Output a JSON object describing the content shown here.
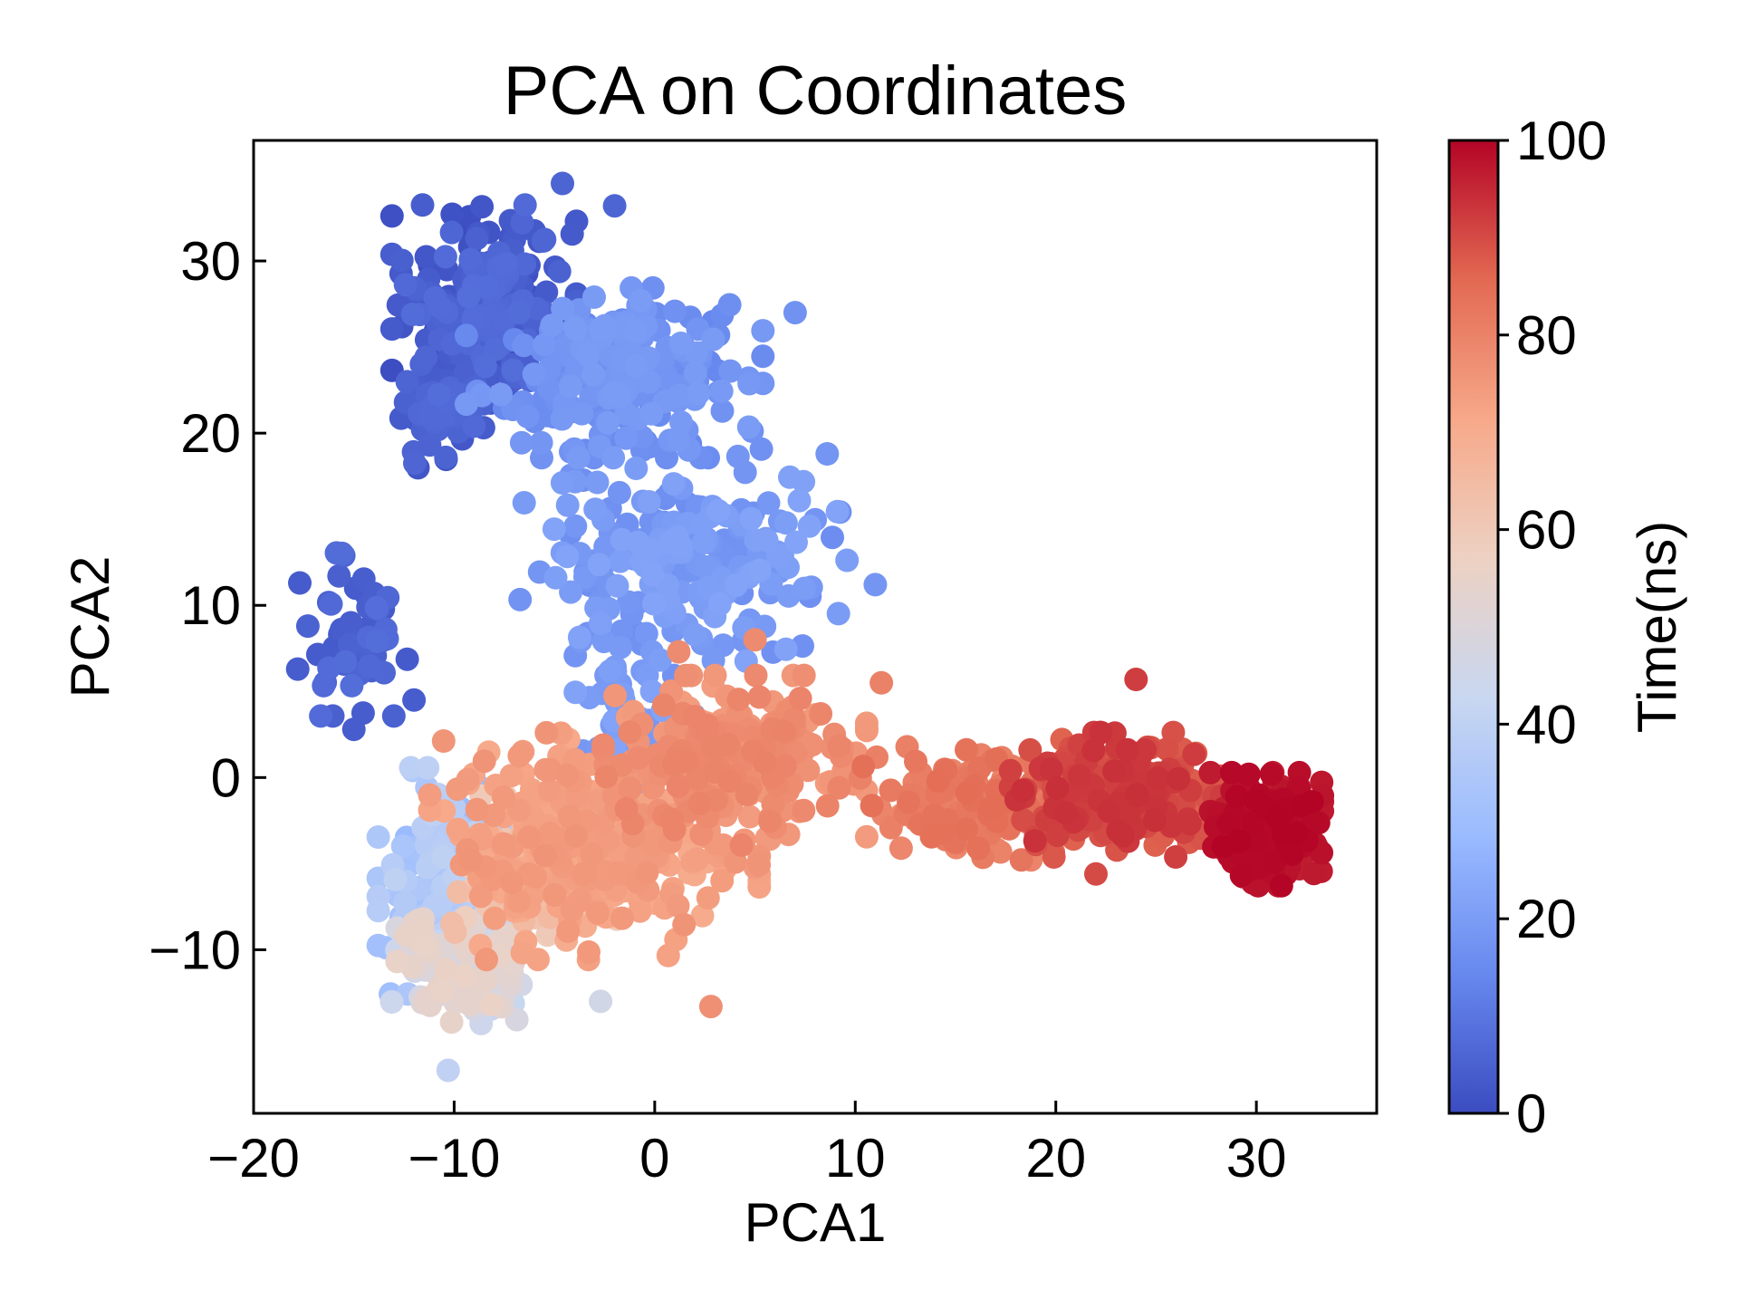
{
  "chart_data": {
    "type": "scatter",
    "title": "PCA on Coordinates",
    "xlabel": "PCA1",
    "ylabel": "PCA2",
    "xlim": [
      -20,
      36
    ],
    "ylim": [
      -19.5,
      37
    ],
    "xticks": [
      -20,
      -10,
      0,
      10,
      20,
      30
    ],
    "xtick_labels": [
      "−20",
      "−10",
      "0",
      "10",
      "20",
      "30"
    ],
    "yticks": [
      -10,
      0,
      10,
      20,
      30
    ],
    "ytick_labels": [
      "−10",
      "0",
      "10",
      "20",
      "30"
    ],
    "grid": false,
    "colormap": "coolwarm",
    "colormap_stops": [
      "#3b4cc0",
      "#6788ee",
      "#9abbff",
      "#c9d7f0",
      "#edd1c2",
      "#f7a889",
      "#e26952",
      "#b40426"
    ],
    "colorbar": {
      "label": "Time(ns)",
      "range": [
        0,
        100
      ],
      "ticks": [
        0,
        20,
        40,
        60,
        80,
        100
      ],
      "tick_labels": [
        "0",
        "20",
        "40",
        "60",
        "80",
        "100"
      ]
    },
    "clusters": [
      {
        "cx": -8.5,
        "cy": 27.5,
        "sx": 2.8,
        "sy": 3.5,
        "n": 240,
        "t0": 0,
        "t1": 8
      },
      {
        "cx": -11,
        "cy": 21,
        "sx": 1.5,
        "sy": 2.5,
        "n": 60,
        "t0": 2,
        "t1": 8
      },
      {
        "cx": -15.3,
        "cy": 8.5,
        "sx": 1.8,
        "sy": 3.0,
        "n": 55,
        "t0": 3,
        "t1": 8
      },
      {
        "cx": -2,
        "cy": 23.5,
        "sx": 4.5,
        "sy": 3.0,
        "n": 260,
        "t0": 14,
        "t1": 20
      },
      {
        "cx": 1.5,
        "cy": 12.5,
        "sx": 5.0,
        "sy": 4.0,
        "n": 230,
        "t0": 16,
        "t1": 22
      },
      {
        "cx": -1,
        "cy": 3.0,
        "sx": 1.8,
        "sy": 3.0,
        "n": 40,
        "t0": 18,
        "t1": 22
      },
      {
        "cx": -10.5,
        "cy": -6,
        "sx": 2.0,
        "sy": 4.0,
        "n": 160,
        "t0": 28,
        "t1": 40
      },
      {
        "cx": -9.5,
        "cy": -11,
        "sx": 2.2,
        "sy": 2.0,
        "n": 140,
        "t0": 42,
        "t1": 56
      },
      {
        "cx": -6,
        "cy": -6,
        "sx": 2.5,
        "sy": 3.0,
        "n": 100,
        "t0": 58,
        "t1": 66
      },
      {
        "cx": -3,
        "cy": -4,
        "sx": 5.0,
        "sy": 4.0,
        "n": 330,
        "t0": 70,
        "t1": 76
      },
      {
        "cx": 4,
        "cy": 1,
        "sx": 4.0,
        "sy": 3.0,
        "n": 260,
        "t0": 74,
        "t1": 80
      },
      {
        "cx": 16,
        "cy": -1.5,
        "sx": 3.5,
        "sy": 2.0,
        "n": 150,
        "t0": 78,
        "t1": 85
      },
      {
        "cx": 23,
        "cy": -1.0,
        "sx": 3.2,
        "sy": 2.2,
        "n": 260,
        "t0": 86,
        "t1": 94
      },
      {
        "cx": 30.5,
        "cy": -3.0,
        "sx": 1.7,
        "sy": 2.0,
        "n": 230,
        "t0": 96,
        "t1": 100
      }
    ],
    "outliers": [
      {
        "x": 5,
        "y": 8,
        "t": 78
      },
      {
        "x": 1.2,
        "y": 7.3,
        "t": 78
      },
      {
        "x": 2.8,
        "y": -13.3,
        "t": 77
      },
      {
        "x": -2.7,
        "y": -13,
        "t": 46
      },
      {
        "x": -10.3,
        "y": -17,
        "t": 40
      },
      {
        "x": -15,
        "y": 2.8,
        "t": 4
      },
      {
        "x": -17.8,
        "y": 6.3,
        "t": 4
      },
      {
        "x": -12,
        "y": 4.5,
        "t": 4
      },
      {
        "x": -2,
        "y": 33.2,
        "t": 6
      },
      {
        "x": -4.6,
        "y": 34.5,
        "t": 6
      },
      {
        "x": 11,
        "y": 11.2,
        "t": 18
      },
      {
        "x": 8.6,
        "y": 18.8,
        "t": 18
      },
      {
        "x": 7,
        "y": 27,
        "t": 17
      },
      {
        "x": 22,
        "y": -5.6,
        "t": 90
      },
      {
        "x": 24,
        "y": 5.7,
        "t": 92
      },
      {
        "x": 11.3,
        "y": 5.5,
        "t": 80
      },
      {
        "x": -5.4,
        "y": 2.6,
        "t": 76
      }
    ]
  }
}
